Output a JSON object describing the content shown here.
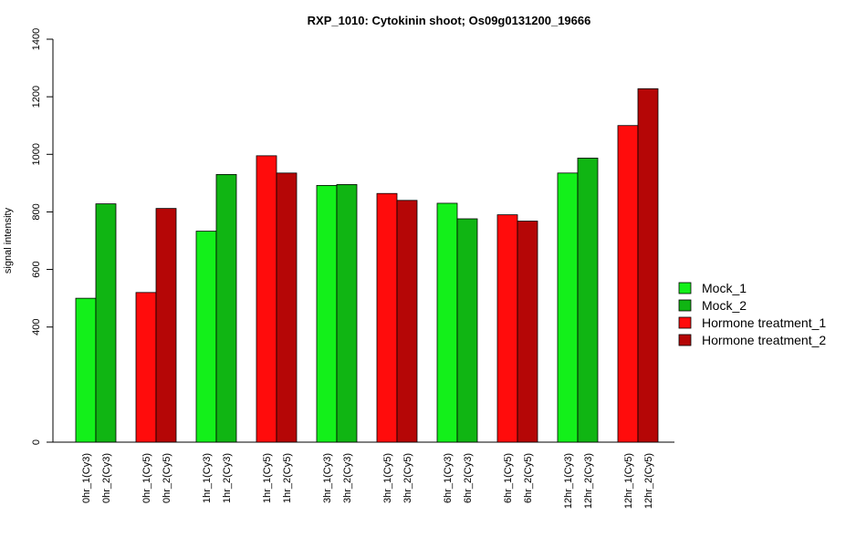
{
  "chart_data": {
    "type": "bar",
    "title": "RXP_1010: Cytokinin shoot; Os09g0131200_19666",
    "xlabel": "",
    "ylabel": "signal intensity",
    "ylim": [
      0,
      1400
    ],
    "yticks": [
      0,
      400,
      600,
      800,
      1000,
      1200,
      1400
    ],
    "grid": false,
    "legend_position": "right",
    "series": [
      {
        "name": "Mock_1",
        "color": "#13F01A"
      },
      {
        "name": "Mock_2",
        "color": "#10B513"
      },
      {
        "name": "Hormone treatment_1",
        "color": "#FF0C0C"
      },
      {
        "name": "Hormone treatment_2",
        "color": "#B50606"
      }
    ],
    "bars": [
      {
        "label": "0hr_1(Cy3)",
        "value": 500,
        "series": 0
      },
      {
        "label": "0hr_2(Cy3)",
        "value": 828,
        "series": 1
      },
      {
        "label": "0hr_1(Cy5)",
        "value": 520,
        "series": 2
      },
      {
        "label": "0hr_2(Cy5)",
        "value": 812,
        "series": 3
      },
      {
        "label": "1hr_1(Cy3)",
        "value": 733,
        "series": 0
      },
      {
        "label": "1hr_2(Cy3)",
        "value": 930,
        "series": 1
      },
      {
        "label": "1hr_1(Cy5)",
        "value": 995,
        "series": 2
      },
      {
        "label": "1hr_2(Cy5)",
        "value": 935,
        "series": 3
      },
      {
        "label": "3hr_1(Cy3)",
        "value": 892,
        "series": 0
      },
      {
        "label": "3hr_2(Cy3)",
        "value": 895,
        "series": 1
      },
      {
        "label": "3hr_1(Cy5)",
        "value": 864,
        "series": 2
      },
      {
        "label": "3hr_2(Cy5)",
        "value": 840,
        "series": 3
      },
      {
        "label": "6hr_1(Cy3)",
        "value": 830,
        "series": 0
      },
      {
        "label": "6hr_2(Cy3)",
        "value": 776,
        "series": 1
      },
      {
        "label": "6hr_1(Cy5)",
        "value": 790,
        "series": 2
      },
      {
        "label": "6hr_2(Cy5)",
        "value": 768,
        "series": 3
      },
      {
        "label": "12hr_1(Cy3)",
        "value": 935,
        "series": 0
      },
      {
        "label": "12hr_2(Cy3)",
        "value": 987,
        "series": 1
      },
      {
        "label": "12hr_1(Cy5)",
        "value": 1100,
        "series": 2
      },
      {
        "label": "12hr_2(Cy5)",
        "value": 1228,
        "series": 3
      }
    ]
  }
}
